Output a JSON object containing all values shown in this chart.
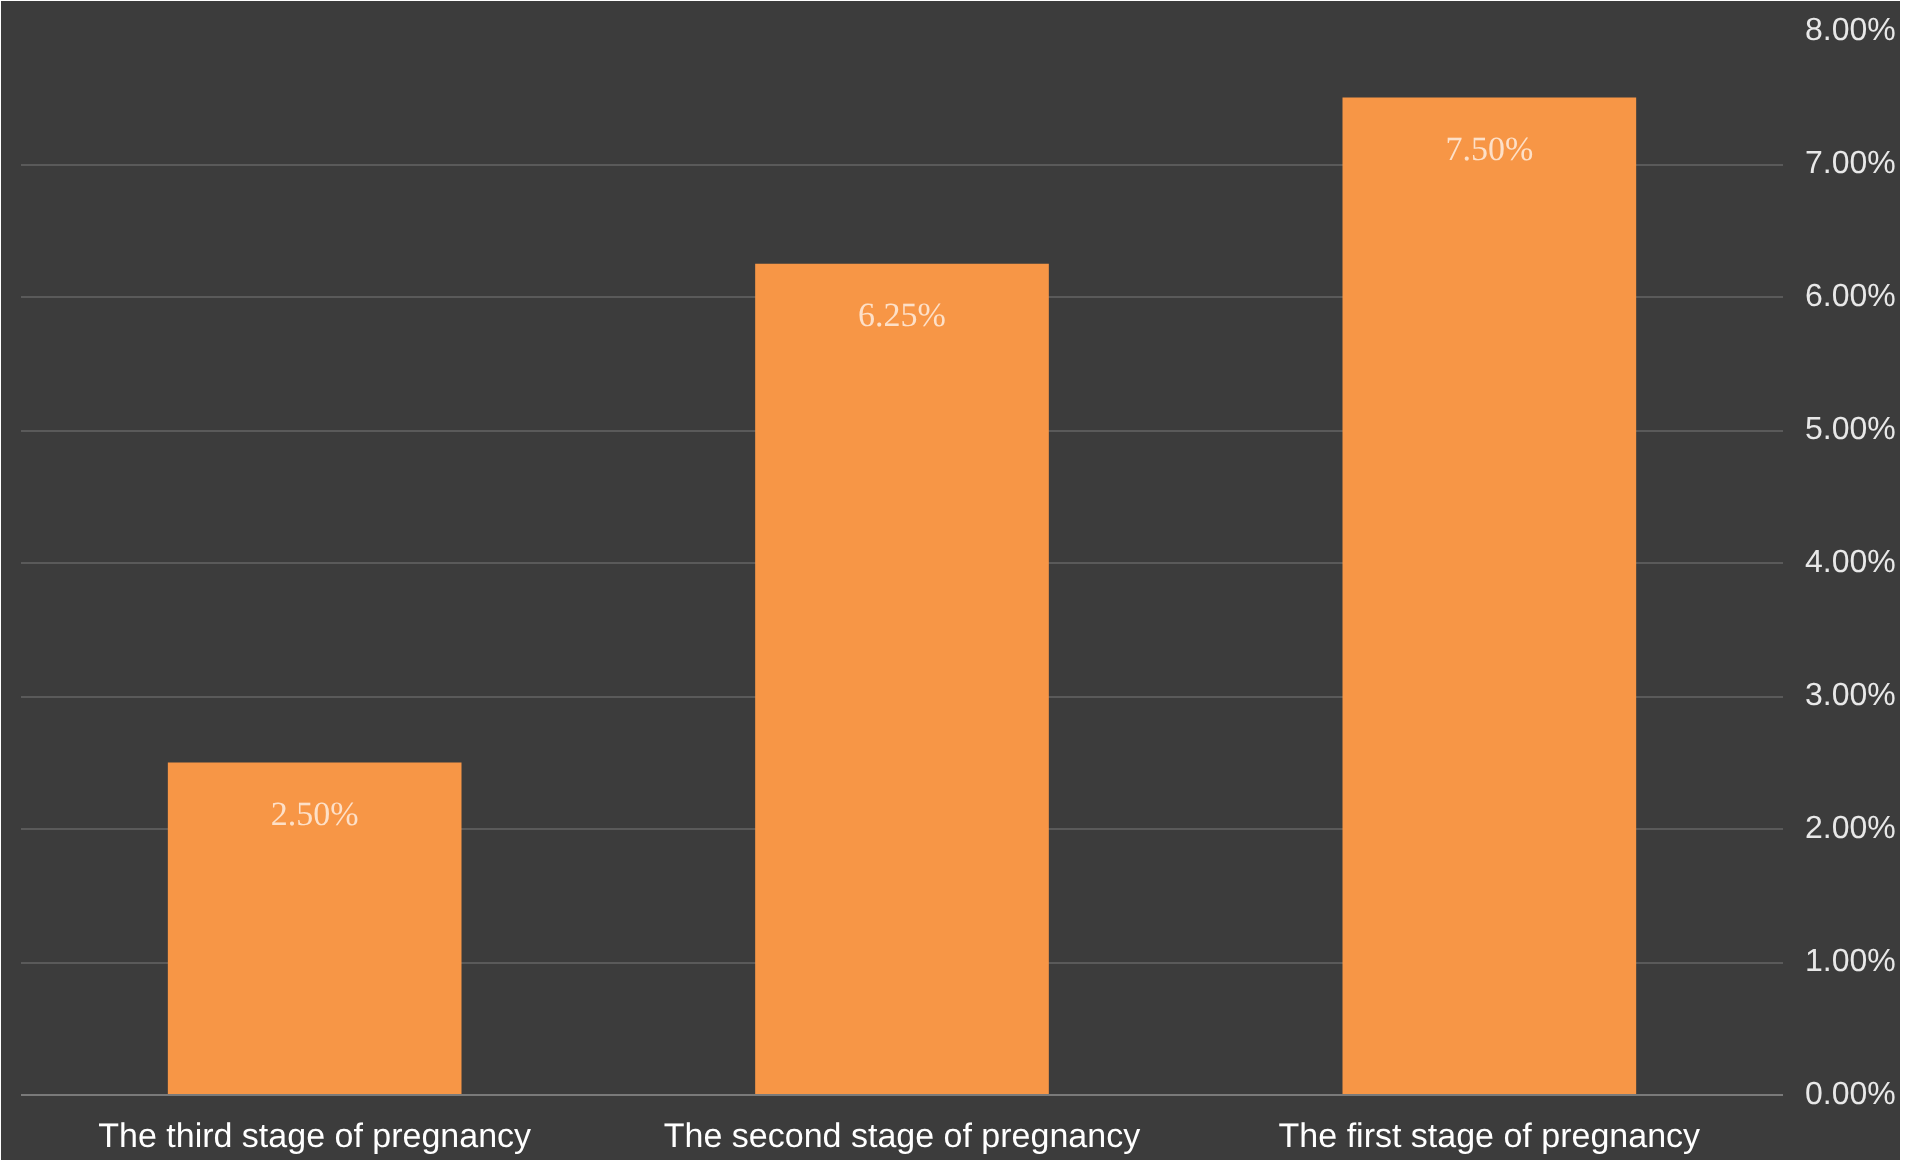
{
  "chart_data": {
    "type": "bar",
    "categories": [
      "The third stage of pregnancy",
      "The second stage of pregnancy",
      "The first stage of pregnancy"
    ],
    "values": [
      2.5,
      6.25,
      7.5
    ],
    "value_labels": [
      "2.50%",
      "6.25%",
      "7.50%"
    ],
    "color": "#f79646",
    "ylim": [
      0,
      8
    ],
    "yticks": [
      {
        "value": 0,
        "label": "0.00%"
      },
      {
        "value": 1,
        "label": "1.00%"
      },
      {
        "value": 2,
        "label": "2.00%"
      },
      {
        "value": 3,
        "label": "3.00%"
      },
      {
        "value": 4,
        "label": "4.00%"
      },
      {
        "value": 5,
        "label": "5.00%"
      },
      {
        "value": 6,
        "label": "6.00%"
      },
      {
        "value": 7,
        "label": "7.00%"
      },
      {
        "value": 8,
        "label": "8.00%"
      }
    ],
    "grid": "y"
  }
}
